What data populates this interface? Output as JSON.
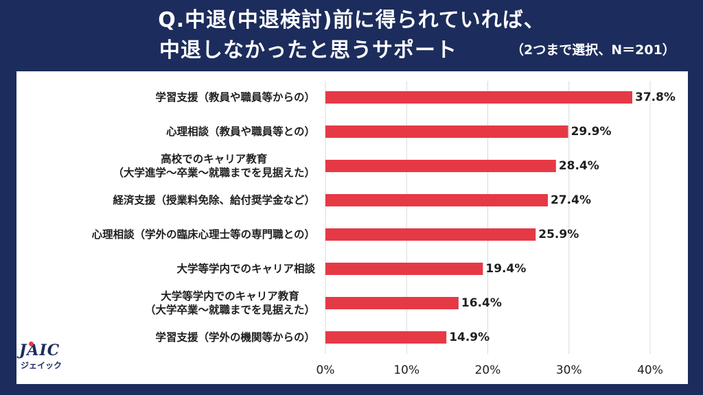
{
  "title": {
    "line1": "Q.中退(中退検討)前に得られていれば、",
    "line2": "中退しなかったと思うサポート",
    "note": "（2つまで選択、N＝201）"
  },
  "logo": {
    "main": "JAIC",
    "sub": "ジェイック"
  },
  "colors": {
    "background": "#1c2c5c",
    "bar": "#e63946",
    "grid": "#d9d9d9",
    "text": "#1f1f1f"
  },
  "chart_data": {
    "type": "bar",
    "orientation": "horizontal",
    "categories": [
      "学習支援（教員や職員等からの）",
      "心理相談（教員や職員等との）",
      "高校でのキャリア教育\n（大学進学～卒業～就職までを見据えた）",
      "経済支援（授業料免除、給付奨学金など）",
      "心理相談（学外の臨床心理士等の専門職との）",
      "大学等学内でのキャリア相談",
      "大学等学内でのキャリア教育\n（大学卒業～就職までを見据えた）",
      "学習支援（学外の機関等からの）"
    ],
    "values": [
      37.8,
      29.9,
      28.4,
      27.4,
      25.9,
      19.4,
      16.4,
      14.9
    ],
    "data_labels": [
      "37.8%",
      "29.9%",
      "28.4%",
      "27.4%",
      "25.9%",
      "19.4%",
      "16.4%",
      "14.9%"
    ],
    "xlim": [
      0,
      40
    ],
    "x_ticks": [
      0,
      10,
      20,
      30,
      40
    ],
    "x_tick_labels": [
      "0%",
      "10%",
      "20%",
      "30%",
      "40%"
    ],
    "grid": true,
    "legend": "none"
  }
}
